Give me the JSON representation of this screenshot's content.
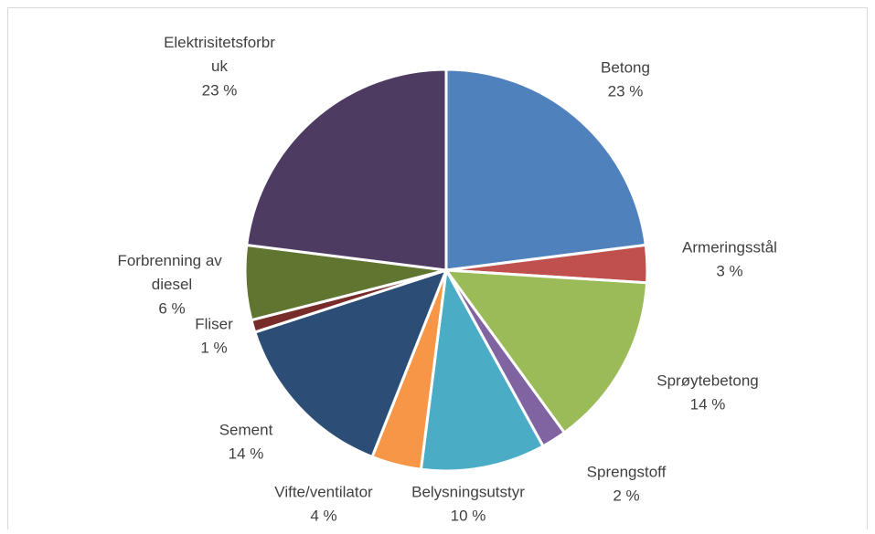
{
  "chart_data": {
    "type": "pie",
    "categories": [
      "Betong",
      "Armeringsstål",
      "Sprøytebetong",
      "Sprengstoff",
      "Belysningsutstyr",
      "Vifte/ventilator",
      "Sement",
      "Fliser",
      "Forbrenning av diesel",
      "Elektrisitetsforbruk"
    ],
    "values": [
      23,
      3,
      14,
      2,
      10,
      4,
      14,
      1,
      6,
      23
    ],
    "value_labels": [
      "23 %",
      "3 %",
      "14 %",
      "2 %",
      "10 %",
      "4 %",
      "14 %",
      "1 %",
      "6 %",
      "23 %"
    ],
    "colors": [
      "#4f81bd",
      "#c0504d",
      "#9bbb59",
      "#8064a2",
      "#4bacc6",
      "#f79646",
      "#2c4d75",
      "#772c2a",
      "#5f7530",
      "#4d3b62"
    ]
  }
}
